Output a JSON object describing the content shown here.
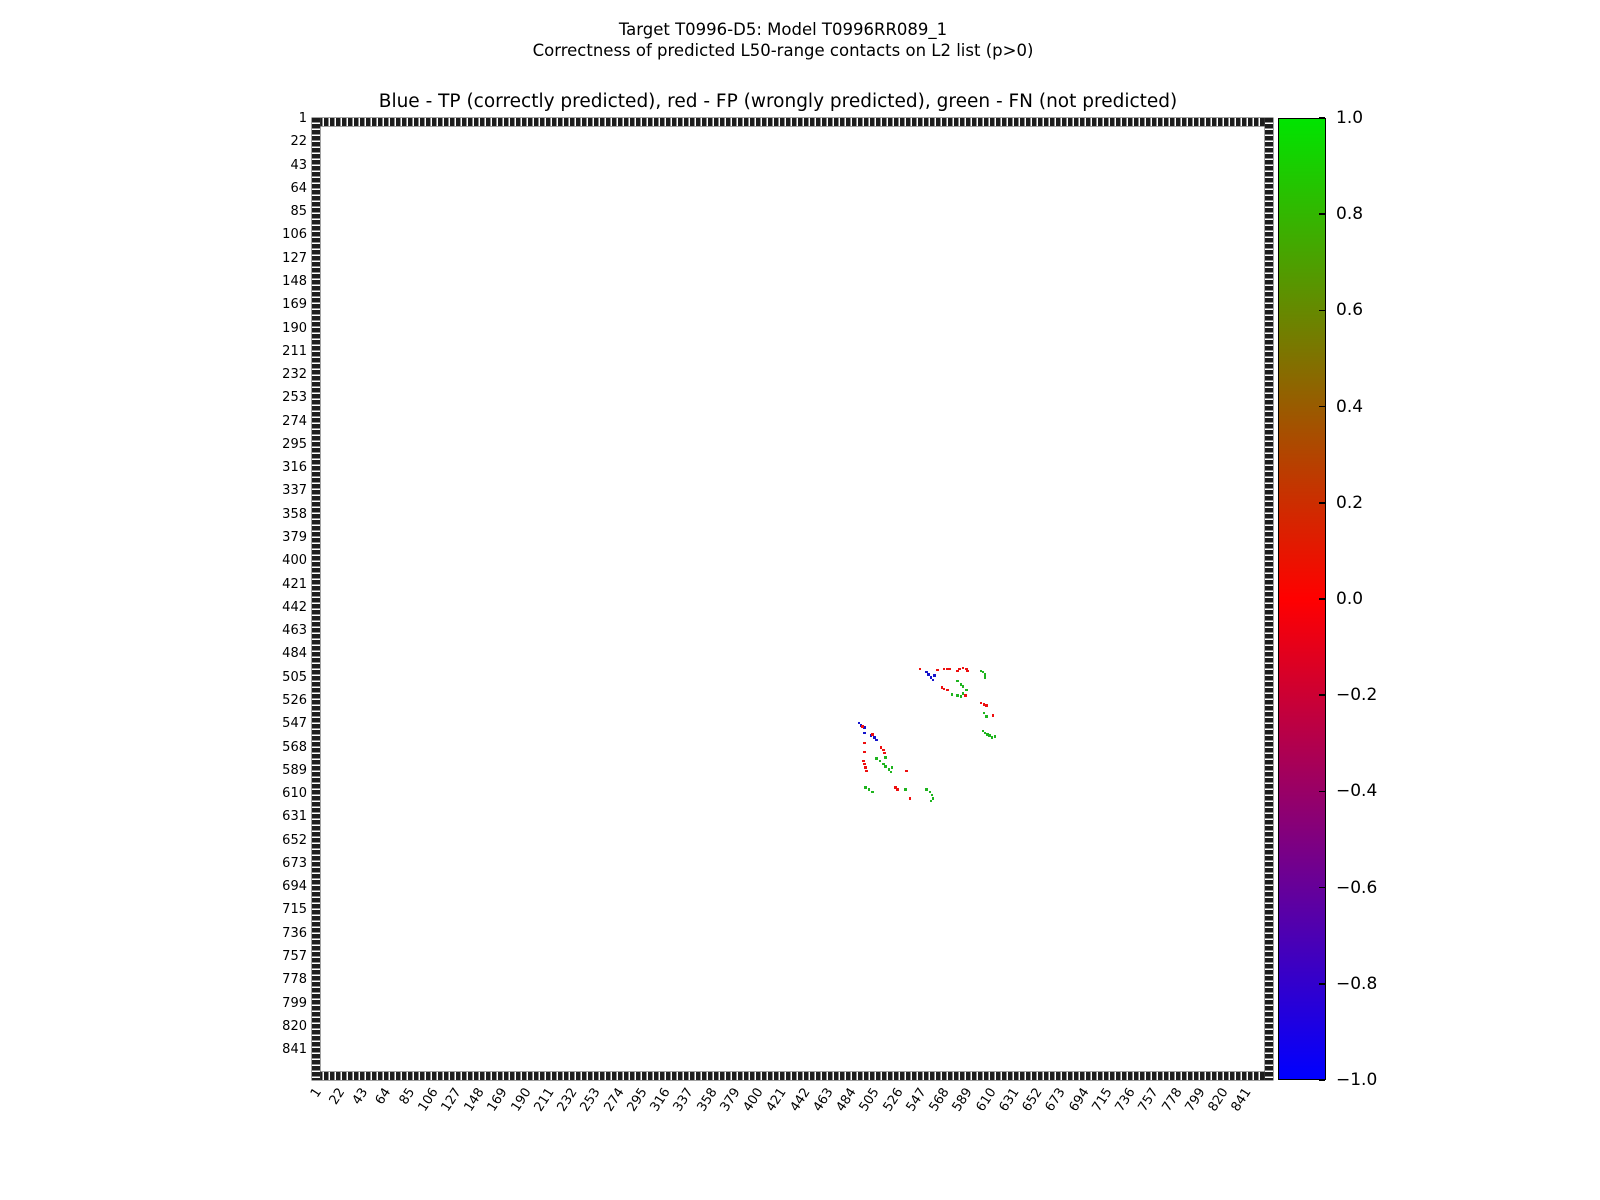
{
  "title": {
    "line1": "Target T0996-D5: Model T0996RR089_1",
    "line2": "Correctness of predicted L50-range contacts on L2 list (p>0)"
  },
  "axes_title": "Blue - TP (correctly predicted), red - FP (wrongly predicted), green - FN (not predicted)",
  "colors": {
    "tp_blue": "#1414cc",
    "fp_red": "#ee0f0f",
    "fn_green": "#1eb41e",
    "colorbar_top": "#00e400",
    "colorbar_mid": "#ff0000",
    "colorbar_bottom": "#0000ff",
    "frame": "#1c1c1c"
  },
  "axis": {
    "tick_start": 1,
    "tick_step": 21,
    "ticks": [
      "1",
      "22",
      "43",
      "64",
      "85",
      "106",
      "127",
      "148",
      "169",
      "190",
      "211",
      "232",
      "253",
      "274",
      "295",
      "316",
      "337",
      "358",
      "379",
      "400",
      "421",
      "442",
      "463",
      "484",
      "505",
      "526",
      "547",
      "568",
      "589",
      "610",
      "631",
      "652",
      "673",
      "694",
      "715",
      "736",
      "757",
      "778",
      "799",
      "820",
      "841"
    ]
  },
  "colorbar": {
    "ticks": [
      "1.0",
      "0.8",
      "0.6",
      "0.4",
      "0.2",
      "0.0",
      "−0.2",
      "−0.4",
      "−0.6",
      "−0.8",
      "−1.0"
    ],
    "vmin": -1.0,
    "vmax": 1.0
  },
  "chart_data": {
    "type": "scatter",
    "title": "Blue - TP (correctly predicted), red - FP (wrongly predicted), green - FN (not predicted)",
    "suptitle": "Target T0996-D5: Model T0996RR089_1\nCorrectness of predicted L50-range contacts on L2 list (p>0)",
    "xlabel": "",
    "ylabel": "",
    "axis_range": [
      0,
      868
    ],
    "x_tick_labels": [
      "1",
      "22",
      "43",
      "64",
      "85",
      "106",
      "127",
      "148",
      "169",
      "190",
      "211",
      "232",
      "253",
      "274",
      "295",
      "316",
      "337",
      "358",
      "379",
      "400",
      "421",
      "442",
      "463",
      "484",
      "505",
      "526",
      "547",
      "568",
      "589",
      "610",
      "631",
      "652",
      "673",
      "694",
      "715",
      "736",
      "757",
      "778",
      "799",
      "820",
      "841"
    ],
    "grid": false,
    "legend_position": "described-in-title",
    "colorbar_range": [
      -1.0,
      1.0
    ],
    "series": [
      {
        "name": "TP (correctly predicted)",
        "color": "#1414cc",
        "points": [
          [
            555,
            500
          ],
          [
            557,
            502
          ],
          [
            559,
            505
          ],
          [
            561,
            507
          ],
          [
            562,
            503
          ],
          [
            494,
            546
          ],
          [
            496,
            548
          ],
          [
            499,
            550
          ],
          [
            499,
            555
          ],
          [
            505,
            557
          ],
          [
            508,
            559
          ],
          [
            510,
            561
          ]
        ]
      },
      {
        "name": "FP (wrongly predicted)",
        "color": "#ee0f0f",
        "points": [
          [
            549,
            497
          ],
          [
            565,
            498
          ],
          [
            571,
            497
          ],
          [
            574,
            497
          ],
          [
            576,
            497
          ],
          [
            583,
            499
          ],
          [
            585,
            497
          ],
          [
            588,
            496
          ],
          [
            591,
            497
          ],
          [
            592,
            499
          ],
          [
            569,
            514
          ],
          [
            571,
            515
          ],
          [
            574,
            516
          ],
          [
            590,
            521
          ],
          [
            604,
            528
          ],
          [
            607,
            529
          ],
          [
            609,
            530
          ],
          [
            615,
            539
          ],
          [
            497,
            549
          ],
          [
            506,
            556
          ],
          [
            499,
            564
          ],
          [
            514,
            568
          ],
          [
            516,
            570
          ],
          [
            517,
            573
          ],
          [
            499,
            572
          ],
          [
            498,
            580
          ],
          [
            499,
            583
          ],
          [
            500,
            586
          ],
          [
            501,
            589
          ],
          [
            527,
            604
          ],
          [
            529,
            606
          ],
          [
            537,
            589
          ],
          [
            540,
            614
          ]
        ]
      },
      {
        "name": "FN (not predicted)",
        "color": "#1eb41e",
        "points": [
          [
            604,
            499
          ],
          [
            606,
            500
          ],
          [
            608,
            502
          ],
          [
            608,
            505
          ],
          [
            583,
            508
          ],
          [
            586,
            511
          ],
          [
            588,
            513
          ],
          [
            591,
            516
          ],
          [
            578,
            520
          ],
          [
            583,
            521
          ],
          [
            586,
            522
          ],
          [
            588,
            519
          ],
          [
            607,
            537
          ],
          [
            609,
            540
          ],
          [
            606,
            553
          ],
          [
            608,
            555
          ],
          [
            610,
            556
          ],
          [
            612,
            557
          ],
          [
            614,
            559
          ],
          [
            617,
            558
          ],
          [
            510,
            578
          ],
          [
            513,
            580
          ],
          [
            516,
            583
          ],
          [
            518,
            585
          ],
          [
            521,
            588
          ],
          [
            523,
            590
          ],
          [
            518,
            577
          ],
          [
            524,
            586
          ],
          [
            500,
            604
          ],
          [
            503,
            606
          ],
          [
            506,
            608
          ],
          [
            536,
            606
          ],
          [
            555,
            606
          ],
          [
            558,
            608
          ],
          [
            560,
            611
          ],
          [
            561,
            614
          ],
          [
            559,
            616
          ]
        ]
      }
    ]
  }
}
